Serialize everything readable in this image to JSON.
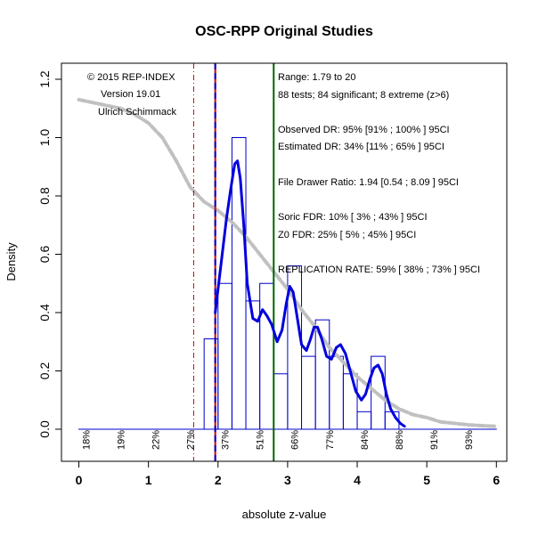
{
  "chart_data": {
    "type": "histogram",
    "title": "OSC-RPP Original Studies",
    "xlabel": "absolute z-value",
    "ylabel": "Density",
    "xlim": [
      -0.25,
      6.15
    ],
    "ylim": [
      -0.11,
      1.255
    ],
    "x_ticks": [
      0,
      1,
      2,
      3,
      4,
      5,
      6
    ],
    "y_ticks": [
      "0.0",
      "0.2",
      "0.4",
      "0.6",
      "0.8",
      "1.0",
      "1.2"
    ],
    "bins": [
      {
        "x0": 0.0,
        "x1": 1.8,
        "density": 0.0
      },
      {
        "x0": 1.8,
        "x1": 2.0,
        "density": 0.31
      },
      {
        "x0": 2.0,
        "x1": 2.2,
        "density": 0.5
      },
      {
        "x0": 2.2,
        "x1": 2.4,
        "density": 1.0
      },
      {
        "x0": 2.4,
        "x1": 2.6,
        "density": 0.44
      },
      {
        "x0": 2.6,
        "x1": 2.8,
        "density": 0.5
      },
      {
        "x0": 2.8,
        "x1": 3.0,
        "density": 0.19
      },
      {
        "x0": 3.0,
        "x1": 3.2,
        "density": 0.56
      },
      {
        "x0": 3.2,
        "x1": 3.4,
        "density": 0.25
      },
      {
        "x0": 3.4,
        "x1": 3.6,
        "density": 0.375
      },
      {
        "x0": 3.6,
        "x1": 3.8,
        "density": 0.25
      },
      {
        "x0": 3.8,
        "x1": 4.0,
        "density": 0.19
      },
      {
        "x0": 4.0,
        "x1": 4.2,
        "density": 0.06
      },
      {
        "x0": 4.2,
        "x1": 4.4,
        "density": 0.25
      },
      {
        "x0": 4.4,
        "x1": 4.6,
        "density": 0.06
      },
      {
        "x0": 4.6,
        "x1": 6.0,
        "density": 0.0
      }
    ],
    "density_curve": {
      "x": [
        1.96,
        2.05,
        2.12,
        2.18,
        2.24,
        2.28,
        2.32,
        2.37,
        2.42,
        2.5,
        2.57,
        2.64,
        2.7,
        2.77,
        2.85,
        2.92,
        2.98,
        3.03,
        3.08,
        3.14,
        3.2,
        3.27,
        3.33,
        3.38,
        3.43,
        3.49,
        3.56,
        3.63,
        3.7,
        3.76,
        3.83,
        3.9,
        3.98,
        4.06,
        4.12,
        4.18,
        4.24,
        4.3,
        4.36,
        4.42,
        4.48,
        4.55,
        4.62,
        4.68
      ],
      "y": [
        0.4,
        0.58,
        0.72,
        0.82,
        0.91,
        0.92,
        0.86,
        0.7,
        0.5,
        0.38,
        0.37,
        0.41,
        0.39,
        0.36,
        0.3,
        0.34,
        0.43,
        0.49,
        0.47,
        0.38,
        0.29,
        0.27,
        0.31,
        0.35,
        0.35,
        0.31,
        0.25,
        0.24,
        0.28,
        0.29,
        0.26,
        0.2,
        0.13,
        0.1,
        0.12,
        0.17,
        0.21,
        0.22,
        0.19,
        0.12,
        0.07,
        0.04,
        0.02,
        0.01
      ]
    },
    "predicted_curve": {
      "x": [
        0.0,
        0.2,
        0.4,
        0.6,
        0.8,
        1.0,
        1.2,
        1.4,
        1.6,
        1.8,
        2.0,
        2.2,
        2.4,
        2.6,
        2.8,
        3.0,
        3.2,
        3.4,
        3.6,
        3.8,
        4.0,
        4.2,
        4.4,
        4.6,
        4.8,
        5.0,
        5.2,
        5.4,
        5.6,
        5.8,
        6.0
      ],
      "y": [
        1.13,
        1.12,
        1.11,
        1.1,
        1.08,
        1.05,
        1.0,
        0.92,
        0.83,
        0.78,
        0.75,
        0.71,
        0.66,
        0.6,
        0.54,
        0.48,
        0.41,
        0.35,
        0.28,
        0.23,
        0.18,
        0.14,
        0.1,
        0.07,
        0.05,
        0.04,
        0.025,
        0.02,
        0.015,
        0.012,
        0.01
      ]
    },
    "vertical_lines": [
      {
        "x": 1.65,
        "color": "#cc0000",
        "style": "dashdot"
      },
      {
        "x": 1.96,
        "color": "#cc0000",
        "style": "solid"
      },
      {
        "x": 1.96,
        "color": "#0000cc",
        "style": "dashed"
      },
      {
        "x": 2.8,
        "color": "#006400",
        "style": "solid"
      }
    ],
    "power_labels": [
      {
        "x": 0.1,
        "label": "18%"
      },
      {
        "x": 0.6,
        "label": "19%"
      },
      {
        "x": 1.1,
        "label": "22%"
      },
      {
        "x": 1.6,
        "label": "27%"
      },
      {
        "x": 2.1,
        "label": "37%"
      },
      {
        "x": 2.6,
        "label": "51%"
      },
      {
        "x": 3.1,
        "label": "66%"
      },
      {
        "x": 3.6,
        "label": "77%"
      },
      {
        "x": 4.1,
        "label": "84%"
      },
      {
        "x": 4.6,
        "label": "88%"
      },
      {
        "x": 5.1,
        "label": "91%"
      },
      {
        "x": 5.6,
        "label": "93%"
      }
    ],
    "colors": {
      "histogram": "#0000cc",
      "density": "#0000dd",
      "predicted": "#c0c0c0",
      "criterion": "#cc0000",
      "median": "#006400"
    },
    "annotations_left": [
      "© 2015 REP-INDEX",
      "Version 19.01",
      "Ulrich Schimmack"
    ],
    "annotations_right": [
      "Range: 1.79 to 20",
      "88 tests; 84 significant; 8 extreme (z>6)",
      "Observed DR: 95% [91% ; 100% ] 95CI",
      "Estimated DR: 34% [11% ; 65% ] 95CI",
      "File Drawer Ratio: 1.94 [0.54 ; 8.09 ] 95CI",
      "Soric FDR: 10% [ 3% ; 43% ] 95CI",
      "Z0 FDR: 25% [ 5% ; 45% ] 95CI",
      "REPLICATION RATE: 59% [ 38% ; 73% ] 95CI"
    ]
  }
}
